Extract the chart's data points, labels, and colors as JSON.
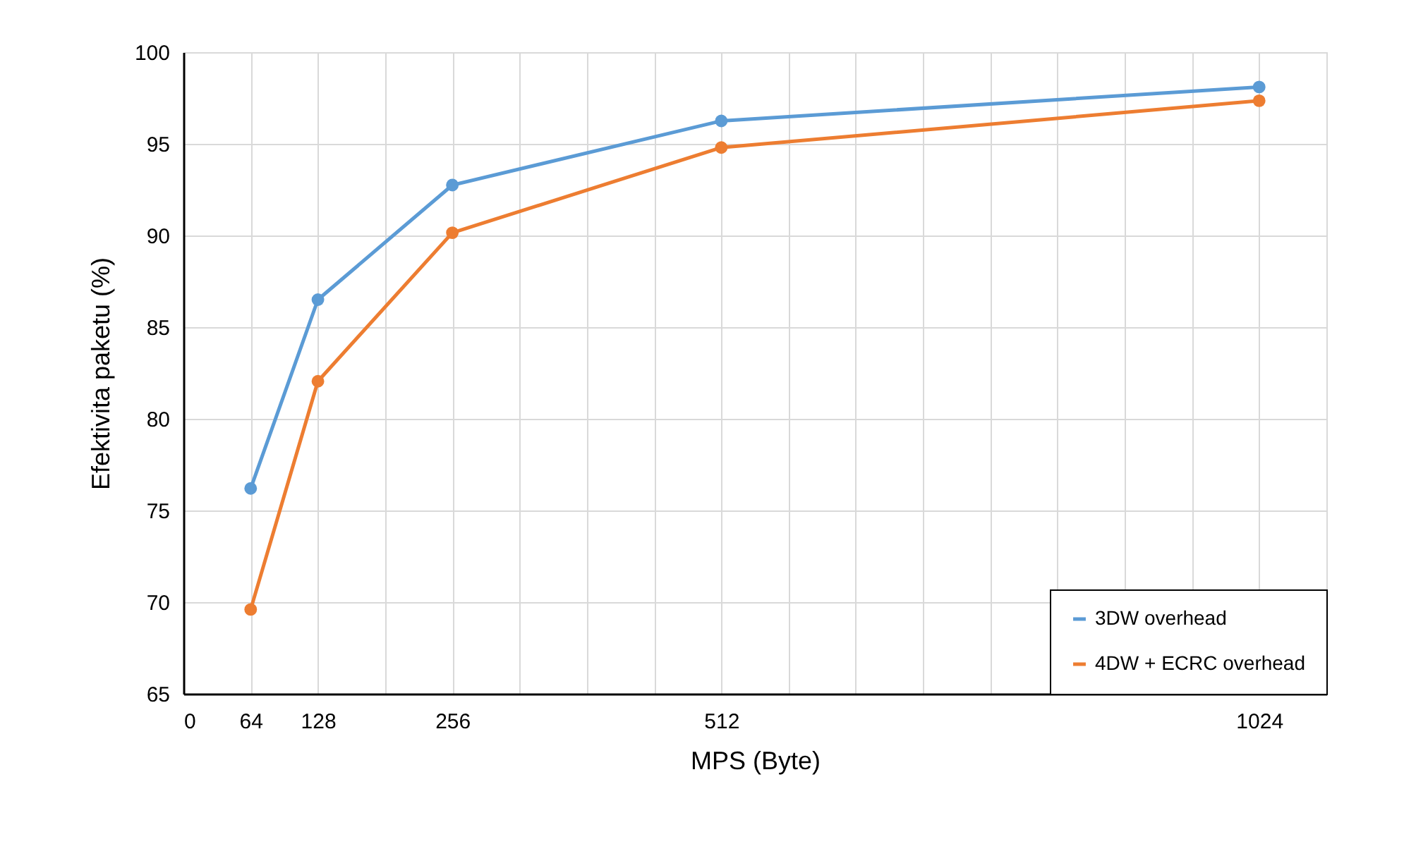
{
  "chart_data": {
    "type": "line",
    "xlabel": "MPS (Byte)",
    "ylabel": "Efektivita paketu (%)",
    "x": [
      64,
      128,
      256,
      512,
      1024
    ],
    "series": [
      {
        "name": "3DW overhead",
        "color": "#5b9bd5",
        "values": [
          76.2,
          86.5,
          92.75,
          96.25,
          98.1
        ]
      },
      {
        "name": "4DW + ECRC overhead",
        "color": "#ed7d31",
        "values": [
          69.6,
          82.05,
          90.15,
          94.8,
          97.35
        ]
      }
    ],
    "xlim": [
      0,
      1088
    ],
    "xticks": [
      0,
      64,
      128,
      {
        "value": 192,
        "label": null
      },
      256,
      {
        "value": 320,
        "label": null
      },
      {
        "value": 384,
        "label": null
      },
      {
        "value": 448,
        "label": null
      },
      512,
      {
        "value": 576,
        "label": null
      },
      {
        "value": 640,
        "label": null
      },
      {
        "value": 704,
        "label": null
      },
      {
        "value": 768,
        "label": null
      },
      {
        "value": 832,
        "label": null
      },
      {
        "value": 896,
        "label": null
      },
      {
        "value": 960,
        "label": null
      },
      1024,
      {
        "value": 1088,
        "label": null
      }
    ],
    "ylim": [
      65,
      100
    ],
    "yticks": [
      65,
      70,
      75,
      80,
      85,
      90,
      95,
      100
    ],
    "grid": true,
    "legend": "bottom right",
    "marker": "circle",
    "line_style": "solid"
  }
}
